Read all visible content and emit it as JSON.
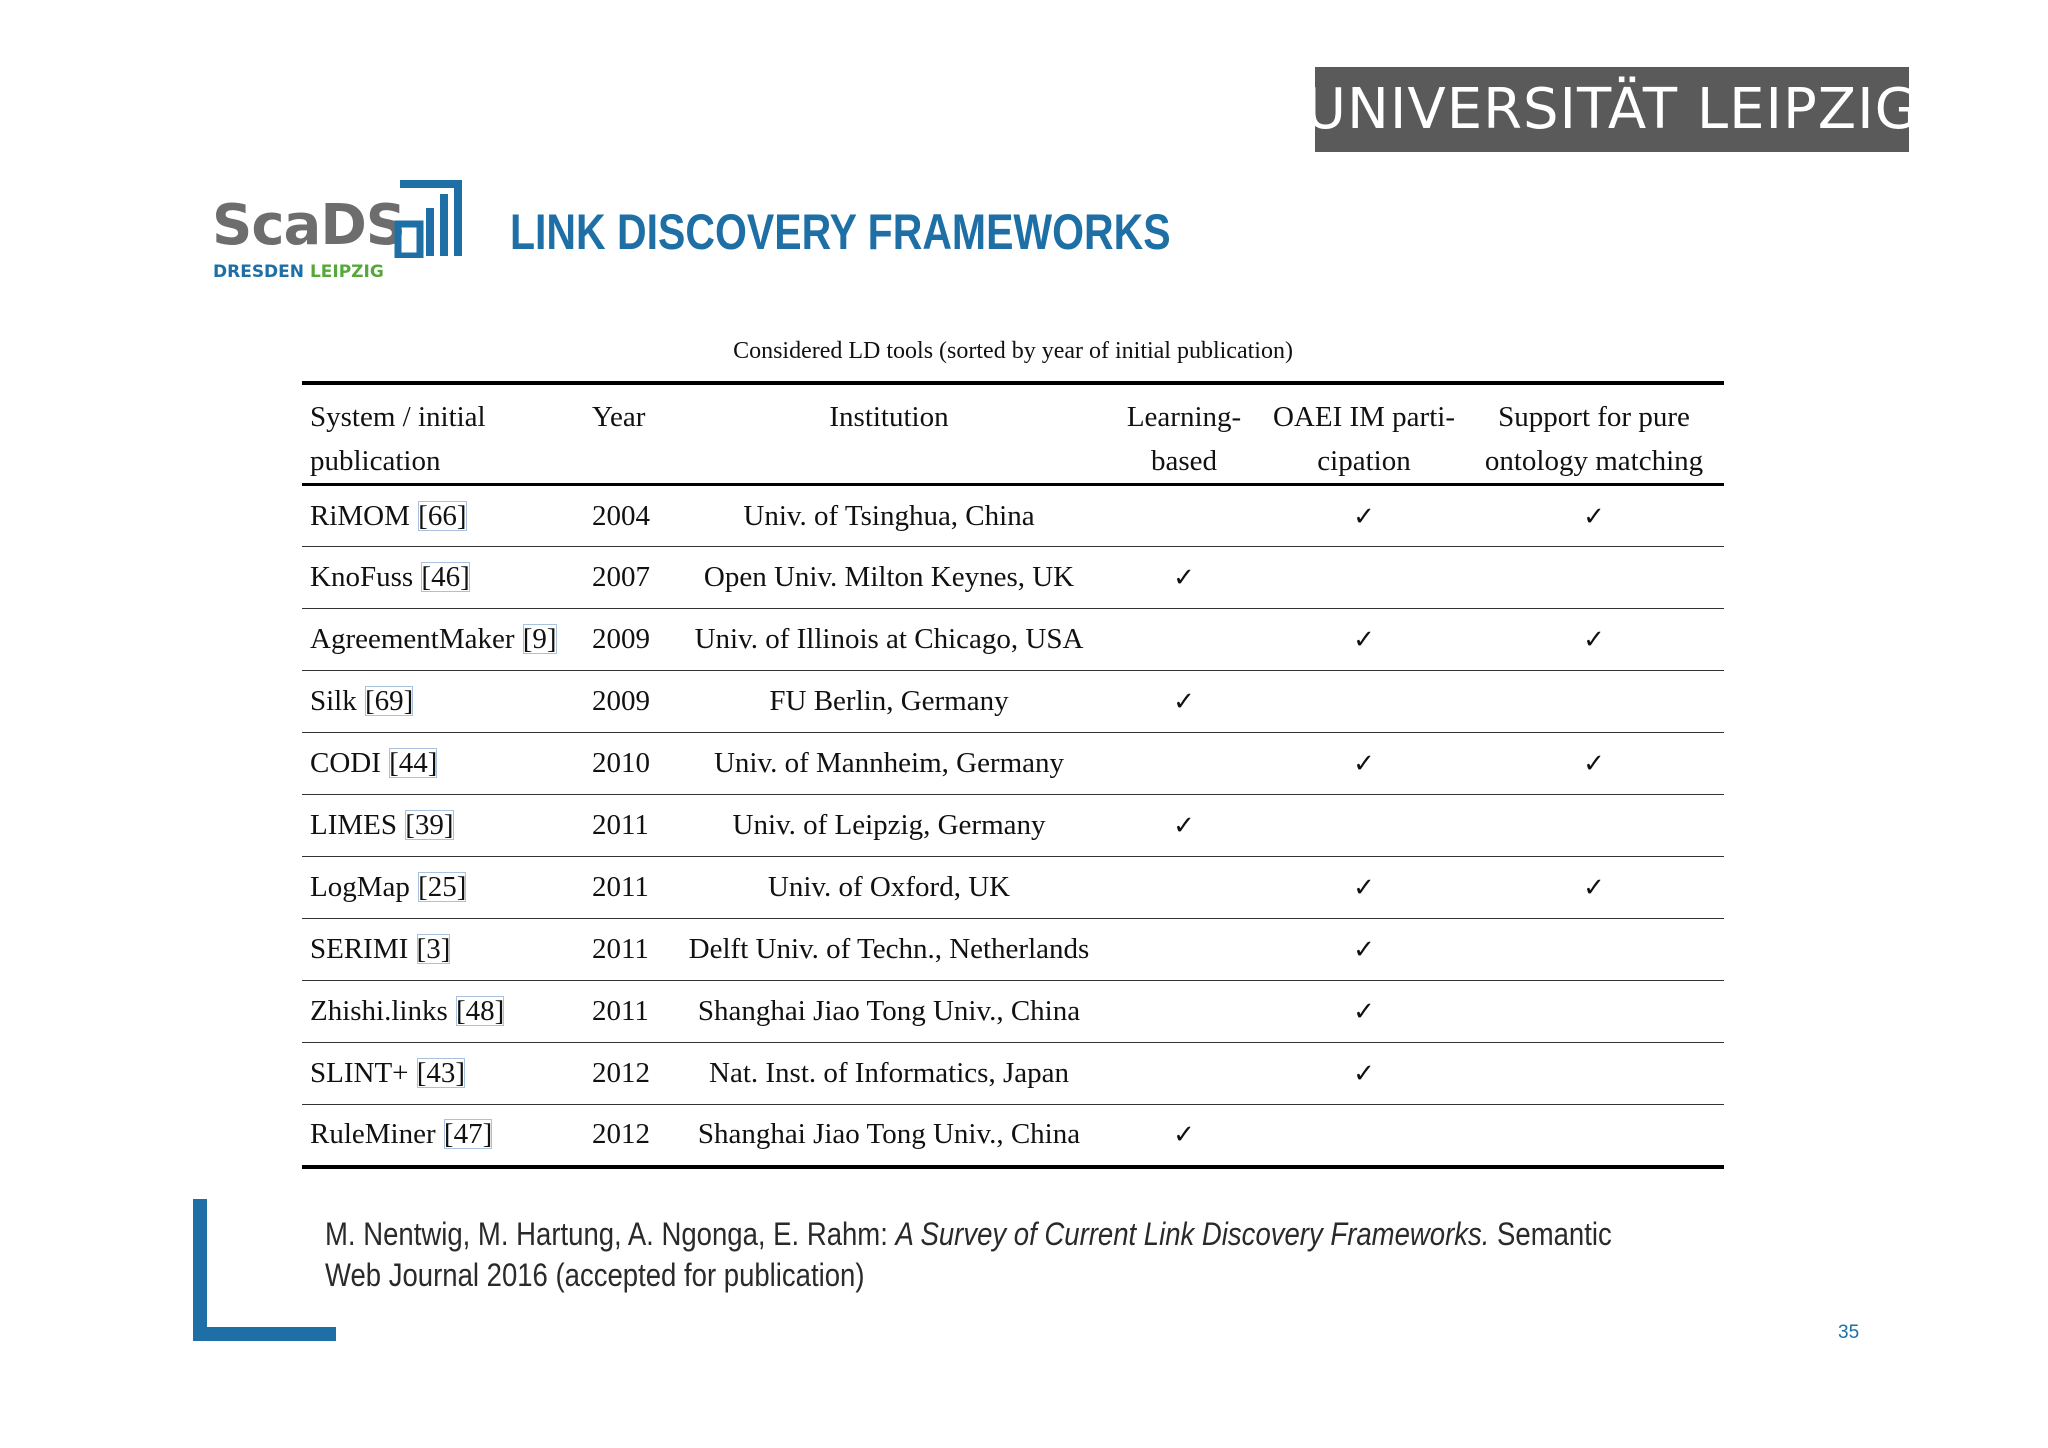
{
  "header": {
    "university": "UNIVERSITÄT LEIPZIG",
    "logo_word": "ScaDS",
    "logo_sub_1": "DRESDEN",
    "logo_sub_2": "LEIPZIG",
    "title": "LINK DISCOVERY FRAMEWORKS"
  },
  "table": {
    "caption": "Considered LD tools (sorted by year of initial publication)",
    "headers": {
      "system_1": "System / initial",
      "system_2": "publication",
      "year": "Year",
      "institution": "Institution",
      "learning_1": "Learning-",
      "learning_2": "based",
      "oaei_1": "OAEI IM parti-",
      "oaei_2": "cipation",
      "pure_1": "Support for pure",
      "pure_2": "ontology matching"
    },
    "check_symbol": "✓",
    "rows": [
      {
        "system": "RiMOM",
        "ref": "[66]",
        "year": "2004",
        "institution": "Univ. of Tsinghua, China",
        "learning": "",
        "oaei": "✓",
        "pure": "✓"
      },
      {
        "system": "KnoFuss",
        "ref": "[46]",
        "year": "2007",
        "institution": "Open Univ. Milton Keynes, UK",
        "learning": "✓",
        "oaei": "",
        "pure": ""
      },
      {
        "system": "AgreementMaker",
        "ref": "[9]",
        "year": "2009",
        "institution": "Univ. of Illinois at Chicago, USA",
        "learning": "",
        "oaei": "✓",
        "pure": "✓"
      },
      {
        "system": "Silk",
        "ref": "[69]",
        "year": "2009",
        "institution": "FU Berlin, Germany",
        "learning": "✓",
        "oaei": "",
        "pure": ""
      },
      {
        "system": "CODI",
        "ref": "[44]",
        "year": "2010",
        "institution": "Univ. of Mannheim, Germany",
        "learning": "",
        "oaei": "✓",
        "pure": "✓"
      },
      {
        "system": "LIMES",
        "ref": "[39]",
        "year": "2011",
        "institution": "Univ. of Leipzig, Germany",
        "learning": "✓",
        "oaei": "",
        "pure": ""
      },
      {
        "system": "LogMap",
        "ref": "[25]",
        "year": "2011",
        "institution": "Univ. of Oxford, UK",
        "learning": "",
        "oaei": "✓",
        "pure": "✓"
      },
      {
        "system": "SERIMI",
        "ref": "[3]",
        "year": "2011",
        "institution": "Delft Univ. of Techn., Netherlands",
        "learning": "",
        "oaei": "✓",
        "pure": ""
      },
      {
        "system": "Zhishi.links",
        "ref": "[48]",
        "year": "2011",
        "institution": "Shanghai Jiao Tong Univ., China",
        "learning": "",
        "oaei": "✓",
        "pure": ""
      },
      {
        "system": "SLINT+",
        "ref": "[43]",
        "year": "2012",
        "institution": "Nat. Inst. of Informatics, Japan",
        "learning": "",
        "oaei": "✓",
        "pure": ""
      },
      {
        "system": "RuleMiner",
        "ref": "[47]",
        "year": "2012",
        "institution": "Shanghai Jiao Tong Univ., China",
        "learning": "✓",
        "oaei": "",
        "pure": ""
      }
    ]
  },
  "citation": {
    "authors": "M. Nentwig, M. Hartung, A. Ngonga, E. Rahm: ",
    "title": "A Survey of Current Link Discovery Frameworks.",
    "rest": " Semantic Web Journal 2016 (accepted for publication)"
  },
  "page_number": "35",
  "colors": {
    "accent_blue": "#1d6fa5",
    "accent_green": "#56a83a",
    "banner_gray": "#5a5a5a"
  }
}
